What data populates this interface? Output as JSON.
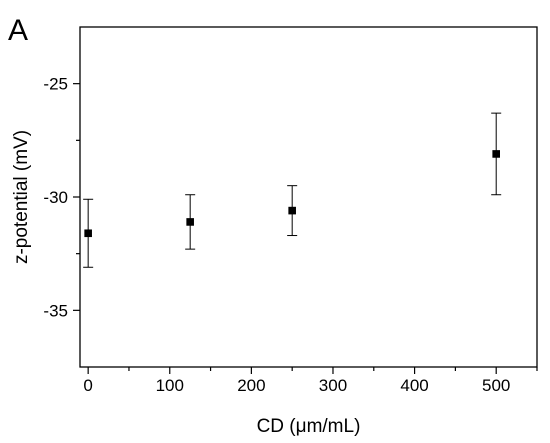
{
  "panel_label": "A",
  "chart_data": {
    "type": "scatter",
    "title": "",
    "xlabel": "CD (μm/mL)",
    "ylabel": "z-potential (mV)",
    "xlim": [
      -10,
      550
    ],
    "ylim": [
      -37.5,
      -22.5
    ],
    "xticks": [
      0,
      100,
      200,
      300,
      400,
      500
    ],
    "yticks": [
      -25,
      -30,
      -35
    ],
    "x_minor_step": 50,
    "y_minor_step": 2.5,
    "grid": false,
    "legend": "none",
    "marker": "square",
    "color": "#000000",
    "points": [
      {
        "x": 0,
        "y": -31.6,
        "err_low": 1.5,
        "err_high": 1.5
      },
      {
        "x": 125,
        "y": -31.1,
        "err_low": 1.2,
        "err_high": 1.2
      },
      {
        "x": 250,
        "y": -30.6,
        "err_low": 1.1,
        "err_high": 1.1
      },
      {
        "x": 500,
        "y": -28.1,
        "err_low": 1.8,
        "err_high": 1.8
      }
    ]
  }
}
